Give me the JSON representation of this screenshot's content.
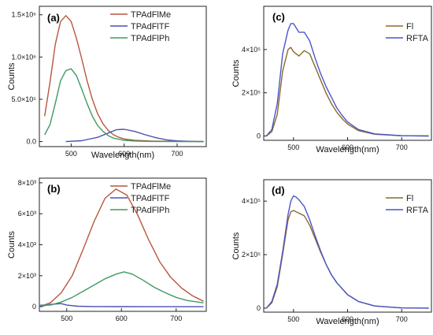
{
  "chart_data": [
    {
      "panel_label": "(a)",
      "type": "line",
      "xlabel": "Wavelength(nm)",
      "ylabel": "Counts",
      "xlim": [
        440,
        755
      ],
      "ylim": [
        -60000,
        1600000
      ],
      "xticks": [
        500,
        600,
        700
      ],
      "xtick_labels": [
        "500",
        "600",
        "700"
      ],
      "yticks": [
        0,
        500000,
        1000000,
        1500000
      ],
      "ytick_labels": [
        "0.0",
        "5.0×10⁵",
        "1.0×10⁶",
        "1.5×10⁶"
      ],
      "legend_position": "top-right",
      "series": [
        {
          "name": "TPAdFlMe",
          "color": "#b5573e",
          "x": [
            450,
            460,
            470,
            480,
            490,
            500,
            510,
            520,
            530,
            540,
            550,
            560,
            570,
            580,
            590,
            600,
            620,
            650,
            700,
            750
          ],
          "y": [
            300000,
            700000,
            1150000,
            1420000,
            1490000,
            1420000,
            1220000,
            980000,
            720000,
            500000,
            330000,
            210000,
            130000,
            80000,
            50000,
            30000,
            15000,
            6000,
            2000,
            0
          ]
        },
        {
          "name": "TPAdFlTF",
          "color": "#4a52b0",
          "x": [
            490,
            520,
            550,
            570,
            585,
            600,
            620,
            640,
            660,
            680,
            700,
            720,
            750
          ],
          "y": [
            0,
            10000,
            50000,
            100000,
            140000,
            145000,
            120000,
            80000,
            45000,
            20000,
            8000,
            3000,
            0
          ]
        },
        {
          "name": "TPAdFlPh",
          "color": "#3e9a62",
          "x": [
            450,
            460,
            470,
            480,
            490,
            500,
            510,
            520,
            530,
            540,
            550,
            560,
            570,
            580,
            600,
            620,
            650,
            700,
            750
          ],
          "y": [
            80000,
            200000,
            450000,
            720000,
            840000,
            860000,
            780000,
            620000,
            450000,
            300000,
            190000,
            120000,
            70000,
            40000,
            15000,
            6000,
            2000,
            0,
            0
          ]
        }
      ]
    },
    {
      "panel_label": "(b)",
      "type": "line",
      "xlabel": "",
      "ylabel": "Counts",
      "xlim": [
        450,
        755
      ],
      "ylim": [
        -300,
        8300
      ],
      "xticks": [
        500,
        600,
        700
      ],
      "xtick_labels": [
        "500",
        "600",
        "700"
      ],
      "yticks": [
        0,
        2000,
        4000,
        6000,
        8000
      ],
      "ytick_labels": [
        "0",
        "2×10³",
        "4×10³",
        "6×10³",
        "8×10³"
      ],
      "legend_position": "top-right",
      "series": [
        {
          "name": "TPAdFlMe",
          "color": "#b5573e",
          "x": [
            450,
            470,
            490,
            510,
            530,
            550,
            570,
            590,
            610,
            630,
            650,
            670,
            690,
            710,
            730,
            750
          ],
          "y": [
            0,
            250,
            900,
            2000,
            3700,
            5500,
            7000,
            7600,
            7200,
            5900,
            4300,
            2900,
            1900,
            1200,
            700,
            350
          ]
        },
        {
          "name": "TPAdFlTF",
          "color": "#4a52b0",
          "x": [
            450,
            470,
            490,
            500,
            520,
            550,
            600,
            650,
            700,
            750
          ],
          "y": [
            0,
            150,
            200,
            100,
            30,
            10,
            5,
            0,
            0,
            0
          ]
        },
        {
          "name": "TPAdFlPh",
          "color": "#3e9a62",
          "x": [
            450,
            470,
            490,
            510,
            530,
            550,
            570,
            590,
            605,
            620,
            640,
            660,
            680,
            700,
            720,
            750
          ],
          "y": [
            100,
            100,
            300,
            600,
            1000,
            1400,
            1800,
            2100,
            2250,
            2100,
            1700,
            1250,
            900,
            600,
            400,
            250
          ]
        }
      ]
    },
    {
      "panel_label": "(c)",
      "type": "line",
      "xlabel": "Wavelength(nm)",
      "ylabel": "Counts",
      "xlim": [
        445,
        755
      ],
      "ylim": [
        -20000,
        600000
      ],
      "xticks": [
        500,
        600,
        700
      ],
      "xtick_labels": [
        "500",
        "600",
        "700"
      ],
      "yticks": [
        0,
        200000,
        400000
      ],
      "ytick_labels": [
        "0",
        "2×10⁵",
        "4×10⁵"
      ],
      "legend_position": "top-right",
      "series": [
        {
          "name": "Fl",
          "color": "#8a6a2a",
          "x": [
            450,
            460,
            470,
            480,
            490,
            495,
            500,
            510,
            520,
            530,
            540,
            550,
            560,
            570,
            580,
            590,
            600,
            620,
            650,
            700,
            750
          ],
          "y": [
            0,
            20000,
            100000,
            300000,
            400000,
            410000,
            390000,
            370000,
            395000,
            380000,
            320000,
            260000,
            200000,
            150000,
            110000,
            80000,
            55000,
            25000,
            8000,
            1000,
            0
          ]
        },
        {
          "name": "RFTA",
          "color": "#4a56c8",
          "x": [
            450,
            460,
            470,
            480,
            490,
            495,
            500,
            505,
            510,
            520,
            530,
            540,
            550,
            560,
            570,
            580,
            590,
            600,
            620,
            650,
            700,
            750
          ],
          "y": [
            0,
            30000,
            150000,
            380000,
            490000,
            520000,
            520000,
            500000,
            480000,
            480000,
            440000,
            360000,
            290000,
            230000,
            180000,
            130000,
            95000,
            65000,
            30000,
            10000,
            1000,
            0
          ]
        }
      ]
    },
    {
      "panel_label": "(d)",
      "type": "line",
      "xlabel": "Wavelength(nm)",
      "ylabel": "Counts",
      "xlim": [
        445,
        755
      ],
      "ylim": [
        -15000,
        480000
      ],
      "xticks": [
        500,
        600,
        700
      ],
      "xtick_labels": [
        "500",
        "600",
        "700"
      ],
      "yticks": [
        0,
        200000,
        400000
      ],
      "ytick_labels": [
        "0",
        "2×10⁵",
        "4×10⁵"
      ],
      "legend_position": "top-right",
      "series": [
        {
          "name": "Fl",
          "color": "#8a6a2a",
          "x": [
            450,
            460,
            470,
            480,
            490,
            495,
            500,
            505,
            510,
            520,
            530,
            540,
            550,
            560,
            570,
            580,
            600,
            620,
            650,
            700,
            750
          ],
          "y": [
            0,
            20000,
            80000,
            200000,
            330000,
            360000,
            365000,
            360000,
            355000,
            345000,
            310000,
            260000,
            210000,
            165000,
            125000,
            95000,
            50000,
            25000,
            8000,
            1000,
            0
          ]
        },
        {
          "name": "RFTA",
          "color": "#4a56c8",
          "x": [
            450,
            460,
            470,
            480,
            490,
            495,
            500,
            505,
            510,
            520,
            530,
            540,
            550,
            560,
            570,
            580,
            600,
            620,
            650,
            700,
            750
          ],
          "y": [
            0,
            25000,
            90000,
            210000,
            350000,
            400000,
            420000,
            415000,
            405000,
            380000,
            330000,
            270000,
            215000,
            165000,
            125000,
            95000,
            50000,
            25000,
            8000,
            1000,
            0
          ]
        }
      ]
    }
  ]
}
